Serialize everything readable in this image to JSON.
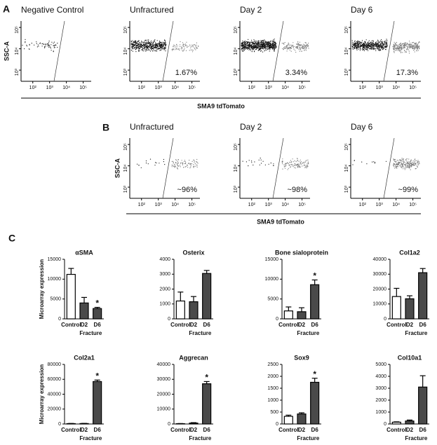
{
  "panels": [
    {
      "letter": "A",
      "ylabel": "SSC-A",
      "xlabel": "SMA9 tdTomato",
      "plots": [
        {
          "title": "Negative Control"
        },
        {
          "title": "Unfractured",
          "annotation": "1.67%"
        },
        {
          "title": "Day 2",
          "annotation": "3.34%"
        },
        {
          "title": "Day 6",
          "annotation": "17.3%"
        }
      ]
    },
    {
      "letter": "B",
      "ylabel": "SSC-A",
      "xlabel": "SMA9 tdTomato",
      "plots": [
        {
          "title": "Unfractured",
          "annotation": "~96%"
        },
        {
          "title": "Day 2",
          "annotation": "~98%"
        },
        {
          "title": "Day 6",
          "annotation": "~99%"
        }
      ]
    },
    {
      "letter": "C"
    }
  ],
  "flow_axes": {
    "log": true,
    "xlim": [
      20,
      300000
    ],
    "xticks": [
      {
        "value": 100,
        "label": "10²"
      },
      {
        "value": 1000,
        "label": "10³"
      },
      {
        "value": 10000,
        "label": "10⁴"
      },
      {
        "value": 100000,
        "label": "10⁵"
      }
    ],
    "ylim": [
      300,
      200000
    ],
    "yticks": [
      {
        "value": 1000,
        "label": "10³"
      },
      {
        "value": 10000,
        "label": "10⁴"
      },
      {
        "value": 100000,
        "label": "10⁵"
      }
    ]
  },
  "chart_data": [
    {
      "type": "bar",
      "title": "αSMA",
      "ylabel": "Microarray expression",
      "xlabel": "Fracture",
      "categories": [
        "Control",
        "D2",
        "D6"
      ],
      "values": [
        11200,
        4000,
        2600
      ],
      "errors": [
        1500,
        1400,
        300
      ],
      "colors": [
        "#ffffff",
        "#4a4a4a",
        "#4a4a4a"
      ],
      "ylim": [
        0,
        15000
      ],
      "yticks": [
        0,
        5000,
        10000,
        15000
      ],
      "annotations": [
        {
          "text": "*",
          "x": "D6"
        }
      ]
    },
    {
      "type": "bar",
      "title": "Osterix",
      "xlabel": "Fracture",
      "categories": [
        "Control",
        "D2",
        "D6"
      ],
      "values": [
        1200,
        1150,
        3050
      ],
      "errors": [
        600,
        350,
        200
      ],
      "colors": [
        "#ffffff",
        "#4a4a4a",
        "#4a4a4a"
      ],
      "ylim": [
        0,
        4000
      ],
      "yticks": [
        0,
        1000,
        2000,
        3000,
        4000
      ]
    },
    {
      "type": "bar",
      "title": "Bone sialoprotein",
      "xlabel": "Fracture",
      "categories": [
        "Control",
        "D2",
        "D6"
      ],
      "values": [
        2000,
        1800,
        8600
      ],
      "errors": [
        1000,
        1000,
        1200
      ],
      "colors": [
        "#ffffff",
        "#4a4a4a",
        "#4a4a4a"
      ],
      "ylim": [
        0,
        15000
      ],
      "yticks": [
        0,
        5000,
        10000,
        15000
      ],
      "annotations": [
        {
          "text": "*",
          "x": "D6"
        }
      ]
    },
    {
      "type": "bar",
      "title": "Col1a2",
      "xlabel": "Fracture",
      "categories": [
        "Control",
        "D2",
        "D6"
      ],
      "values": [
        15000,
        13500,
        31000
      ],
      "errors": [
        5500,
        2000,
        2800
      ],
      "colors": [
        "#ffffff",
        "#4a4a4a",
        "#4a4a4a"
      ],
      "ylim": [
        0,
        40000
      ],
      "yticks": [
        0,
        10000,
        20000,
        30000,
        40000
      ]
    },
    {
      "type": "bar",
      "title": "Col2a1",
      "ylabel": "Microarray expression",
      "xlabel": "Fracture",
      "categories": [
        "Control",
        "D2",
        "D6"
      ],
      "values": [
        500,
        600,
        57000
      ],
      "errors": [
        200,
        200,
        2000
      ],
      "colors": [
        "#ffffff",
        "#4a4a4a",
        "#4a4a4a"
      ],
      "ylim": [
        0,
        80000
      ],
      "yticks": [
        0,
        20000,
        40000,
        60000,
        80000
      ],
      "annotations": [
        {
          "text": "*",
          "x": "D6"
        }
      ]
    },
    {
      "type": "bar",
      "title": "Aggrecan",
      "xlabel": "Fracture",
      "categories": [
        "Control",
        "D2",
        "D6"
      ],
      "values": [
        200,
        600,
        27000
      ],
      "errors": [
        100,
        300,
        1500
      ],
      "colors": [
        "#ffffff",
        "#4a4a4a",
        "#4a4a4a"
      ],
      "ylim": [
        0,
        40000
      ],
      "yticks": [
        0,
        10000,
        20000,
        30000,
        40000
      ],
      "annotations": [
        {
          "text": "*",
          "x": "D6"
        }
      ]
    },
    {
      "type": "bar",
      "title": "Sox9",
      "xlabel": "Fracture",
      "categories": [
        "Control",
        "D2",
        "D6"
      ],
      "values": [
        320,
        420,
        1750
      ],
      "errors": [
        50,
        50,
        170
      ],
      "colors": [
        "#ffffff",
        "#4a4a4a",
        "#4a4a4a"
      ],
      "ylim": [
        0,
        2500
      ],
      "yticks": [
        0,
        500,
        1000,
        1500,
        2000,
        2500
      ],
      "annotations": [
        {
          "text": "*",
          "x": "D6"
        }
      ]
    },
    {
      "type": "bar",
      "title": "Col10a1",
      "xlabel": "Fracture",
      "categories": [
        "Control",
        "D2",
        "D6"
      ],
      "values": [
        150,
        250,
        3100
      ],
      "errors": [
        30,
        80,
        950
      ],
      "colors": [
        "#ffffff",
        "#4a4a4a",
        "#4a4a4a"
      ],
      "ylim": [
        0,
        5000
      ],
      "yticks": [
        0,
        1000,
        2000,
        3000,
        4000,
        5000
      ]
    }
  ]
}
